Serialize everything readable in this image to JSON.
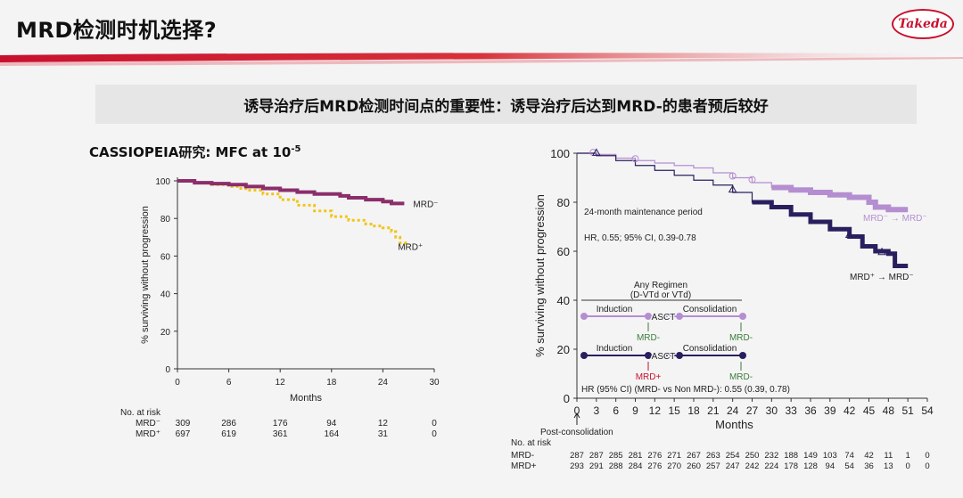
{
  "slide": {
    "title": "MRD检测时机选择?",
    "logo_text": "Takeda",
    "subtitle": "诱导治疗后MRD检测时间点的重要性：诱导治疗后达到MRD-的患者预后较好",
    "left_label_main": "CASSIOPEIA研究: MFC at 10",
    "left_label_exp": "-5",
    "colors": {
      "brand_red": "#c8102e",
      "mrd_neg_left": "#8b2e6b",
      "mrd_pos_left": "#f2c418",
      "mrd_neg_right": "#b48ed1",
      "mrd_pos_right": "#2a1f5e"
    }
  },
  "chart_data": [
    {
      "type": "line",
      "title": "",
      "xlabel": "Months",
      "ylabel": "% surviving without progression",
      "xlim": [
        0,
        30
      ],
      "ylim": [
        0,
        100
      ],
      "x_ticks": [
        0,
        6,
        12,
        18,
        24,
        30
      ],
      "y_ticks": [
        0,
        20,
        40,
        60,
        80,
        100
      ],
      "grid": false,
      "series": [
        {
          "name": "MRD⁻",
          "color": "#8b2e6b",
          "points": [
            [
              0,
              100
            ],
            [
              2,
              99
            ],
            [
              4,
              98.5
            ],
            [
              6,
              98
            ],
            [
              8,
              97
            ],
            [
              10,
              96
            ],
            [
              12,
              95
            ],
            [
              14,
              94
            ],
            [
              16,
              93
            ],
            [
              18,
              93
            ],
            [
              19,
              92
            ],
            [
              20,
              91
            ],
            [
              22,
              90
            ],
            [
              24,
              89
            ],
            [
              25,
              88
            ],
            [
              26,
              88
            ],
            [
              26.5,
              88
            ]
          ]
        },
        {
          "name": "MRD⁺",
          "color": "#f2c418",
          "points": [
            [
              0,
              100
            ],
            [
              2,
              99
            ],
            [
              4,
              98
            ],
            [
              6,
              97
            ],
            [
              7,
              96
            ],
            [
              8,
              95
            ],
            [
              10,
              93
            ],
            [
              12,
              90
            ],
            [
              14,
              87
            ],
            [
              16,
              84
            ],
            [
              18,
              81
            ],
            [
              20,
              79
            ],
            [
              22,
              77
            ],
            [
              23,
              76
            ],
            [
              24,
              75
            ],
            [
              25,
              73
            ],
            [
              25.5,
              70
            ],
            [
              26,
              67
            ],
            [
              27,
              66
            ]
          ]
        }
      ],
      "risk_table": {
        "title": "No. at risk",
        "rows": [
          {
            "label": "MRD⁻",
            "values": [
              "309",
              "286",
              "176",
              "94",
              "12",
              "0"
            ]
          },
          {
            "label": "MRD⁺",
            "values": [
              "697",
              "619",
              "361",
              "164",
              "31",
              "0"
            ]
          }
        ]
      }
    },
    {
      "type": "line",
      "title": "",
      "xlabel": "Months",
      "ylabel": "% surviving without progression",
      "xlim": [
        0,
        54
      ],
      "ylim": [
        0,
        100
      ],
      "x_ticks": [
        0,
        3,
        6,
        9,
        12,
        15,
        18,
        21,
        24,
        27,
        30,
        33,
        36,
        39,
        42,
        45,
        48,
        51,
        54
      ],
      "y_ticks": [
        0,
        20,
        40,
        60,
        80,
        100
      ],
      "grid": false,
      "series": [
        {
          "name": "MRD⁻ → MRD⁻",
          "color": "#b48ed1",
          "points": [
            [
              0,
              100
            ],
            [
              3,
              99.5
            ],
            [
              6,
              98
            ],
            [
              9,
              97
            ],
            [
              12,
              96
            ],
            [
              15,
              95
            ],
            [
              18,
              94
            ],
            [
              21,
              92
            ],
            [
              24,
              90
            ],
            [
              27,
              88
            ],
            [
              30,
              86
            ],
            [
              33,
              85
            ],
            [
              36,
              84
            ],
            [
              39,
              83
            ],
            [
              42,
              82
            ],
            [
              45,
              80
            ],
            [
              46,
              78
            ],
            [
              48,
              77
            ],
            [
              51,
              77
            ]
          ]
        },
        {
          "name": "MRD⁺ → MRD⁻",
          "color": "#2a1f5e",
          "points": [
            [
              0,
              100
            ],
            [
              3,
              99
            ],
            [
              6,
              97
            ],
            [
              9,
              95
            ],
            [
              12,
              93
            ],
            [
              15,
              91
            ],
            [
              18,
              89
            ],
            [
              21,
              87
            ],
            [
              24,
              84
            ],
            [
              27,
              80
            ],
            [
              30,
              78
            ],
            [
              33,
              75
            ],
            [
              36,
              72
            ],
            [
              39,
              69
            ],
            [
              42,
              66
            ],
            [
              44,
              62
            ],
            [
              46,
              60
            ],
            [
              48,
              59
            ],
            [
              49,
              54
            ],
            [
              51,
              54
            ]
          ]
        }
      ],
      "annotations": [
        "24-month maintenance period",
        "HR, 0.55; 95% CI, 0.39-0.78",
        "HR (95% CI) (MRD- vs Non MRD-): 0.55 (0.39, 0.78)"
      ],
      "schema": {
        "heading1": "Any Regimen",
        "heading2": "(D-VTd or VTd)",
        "induction": "Induction",
        "consolidation": "Consolidation",
        "asct": "ASCT",
        "mrd_neg": "MRD-",
        "mrd_pos": "MRD+"
      },
      "post_consolidation": "Post-consolidation",
      "risk_table": {
        "title": "No. at risk",
        "rows": [
          {
            "label": "MRD-",
            "values": [
              "287",
              "287",
              "285",
              "281",
              "276",
              "271",
              "267",
              "263",
              "254",
              "250",
              "232",
              "188",
              "149",
              "103",
              "74",
              "42",
              "11",
              "1",
              "0"
            ]
          },
          {
            "label": "MRD+",
            "values": [
              "293",
              "291",
              "288",
              "284",
              "276",
              "270",
              "260",
              "257",
              "247",
              "242",
              "224",
              "178",
              "128",
              "94",
              "54",
              "36",
              "13",
              "0",
              "0"
            ]
          }
        ]
      }
    }
  ]
}
